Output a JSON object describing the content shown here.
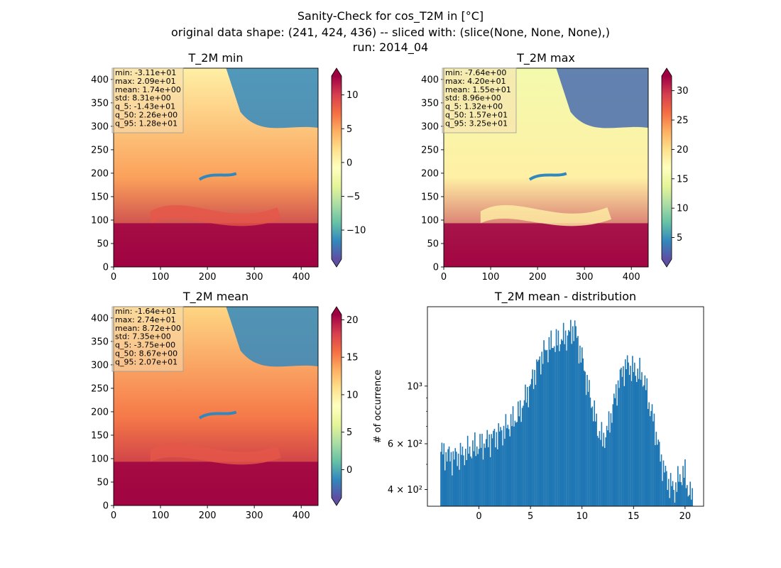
{
  "suptitle": {
    "line1": "Sanity-Check for cos_T2M in [°C]",
    "line2": "original data shape: (241, 424, 436) -- sliced with: (slice(None, None, None),)",
    "line3": "run: 2014_04"
  },
  "chart_data": [
    {
      "type": "heatmap",
      "title": "T_2M min",
      "colormap": "Spectral_r",
      "xlim": [
        0,
        436
      ],
      "ylim": [
        0,
        424
      ],
      "x_ticks": [
        "0",
        "100",
        "200",
        "300",
        "400"
      ],
      "y_ticks": [
        "0",
        "50",
        "100",
        "150",
        "200",
        "250",
        "300",
        "350",
        "400"
      ],
      "colorbar": {
        "range": [
          -14.3,
          12.8
        ],
        "ticks": [
          "−10",
          "−5",
          "0",
          "5",
          "10"
        ],
        "tick_values": [
          -10,
          -5,
          0,
          5,
          10
        ],
        "extend": "both"
      },
      "stats": [
        "min: -3.11e+01",
        "max: 2.09e+01",
        "mean: 1.74e+00",
        "std: 8.31e+00",
        "q_5: -1.43e+01",
        "q_50: 2.26e+00",
        "q_95: 1.28e+01"
      ]
    },
    {
      "type": "heatmap",
      "title": "T_2M max",
      "colormap": "Spectral_r",
      "xlim": [
        0,
        436
      ],
      "ylim": [
        0,
        424
      ],
      "x_ticks": [
        "0",
        "100",
        "200",
        "300",
        "400"
      ],
      "y_ticks": [
        "0",
        "50",
        "100",
        "150",
        "200",
        "250",
        "300",
        "350",
        "400"
      ],
      "colorbar": {
        "range": [
          1.32,
          32.5
        ],
        "ticks": [
          "5",
          "10",
          "15",
          "20",
          "25",
          "30"
        ],
        "tick_values": [
          5,
          10,
          15,
          20,
          25,
          30
        ],
        "extend": "both"
      },
      "stats": [
        "min: -7.64e+00",
        "max: 4.20e+01",
        "mean: 1.55e+01",
        "std: 8.96e+00",
        "q_5: 1.32e+00",
        "q_50: 1.57e+01",
        "q_95: 3.25e+01"
      ]
    },
    {
      "type": "heatmap",
      "title": "T_2M mean",
      "colormap": "Spectral_r",
      "xlim": [
        0,
        436
      ],
      "ylim": [
        0,
        424
      ],
      "x_ticks": [
        "0",
        "100",
        "200",
        "300",
        "400"
      ],
      "y_ticks": [
        "0",
        "50",
        "100",
        "150",
        "200",
        "250",
        "300",
        "350",
        "400"
      ],
      "colorbar": {
        "range": [
          -3.75,
          20.7
        ],
        "ticks": [
          "0",
          "5",
          "10",
          "15",
          "20"
        ],
        "tick_values": [
          0,
          5,
          10,
          15,
          20
        ],
        "extend": "both"
      },
      "stats": [
        "min: -1.64e+01",
        "max: 2.74e+01",
        "mean: 8.72e+00",
        "std: 7.35e+00",
        "q_5: -3.75e+00",
        "q_50: 8.67e+00",
        "q_95: 2.07e+01"
      ]
    },
    {
      "type": "bar",
      "title": "T_2M mean - distribution",
      "xlabel": "",
      "ylabel": "# of occurrence",
      "yscale": "log",
      "xlim": [
        -5.0,
        21.8
      ],
      "ylim": [
        345,
        2020
      ],
      "x_ticks": [
        "0",
        "5",
        "10",
        "15",
        "20"
      ],
      "x_tick_values": [
        0,
        5,
        10,
        15,
        20
      ],
      "y_ticks": [
        "4 × 10²",
        "6 × 10²",
        "10³"
      ],
      "y_tick_values": [
        400,
        600,
        1000
      ],
      "color": "#1f77b4",
      "bin_start": -3.75,
      "bin_width": 0.1,
      "x": [
        -3.75,
        -2.5,
        -1.5,
        -0.5,
        0.5,
        1.5,
        2.5,
        3.5,
        4.0,
        4.5,
        5.0,
        5.5,
        6.0,
        6.5,
        7.0,
        7.5,
        8.0,
        8.5,
        9.0,
        9.3,
        9.5,
        10.0,
        10.5,
        11.0,
        11.5,
        12.0,
        12.5,
        13.0,
        13.5,
        14.0,
        14.5,
        15.0,
        15.5,
        16.0,
        16.5,
        17.0,
        17.5,
        18.0,
        18.5,
        19.0,
        19.5,
        20.0,
        20.3,
        20.7
      ],
      "values": [
        560,
        530,
        550,
        580,
        600,
        640,
        680,
        750,
        800,
        900,
        1000,
        1150,
        1280,
        1380,
        1450,
        1470,
        1520,
        1560,
        1630,
        1700,
        1520,
        1280,
        1020,
        840,
        690,
        620,
        680,
        830,
        1020,
        1160,
        1210,
        1150,
        1130,
        1070,
        860,
        720,
        560,
        470,
        420,
        400,
        450,
        460,
        400,
        370
      ]
    }
  ]
}
